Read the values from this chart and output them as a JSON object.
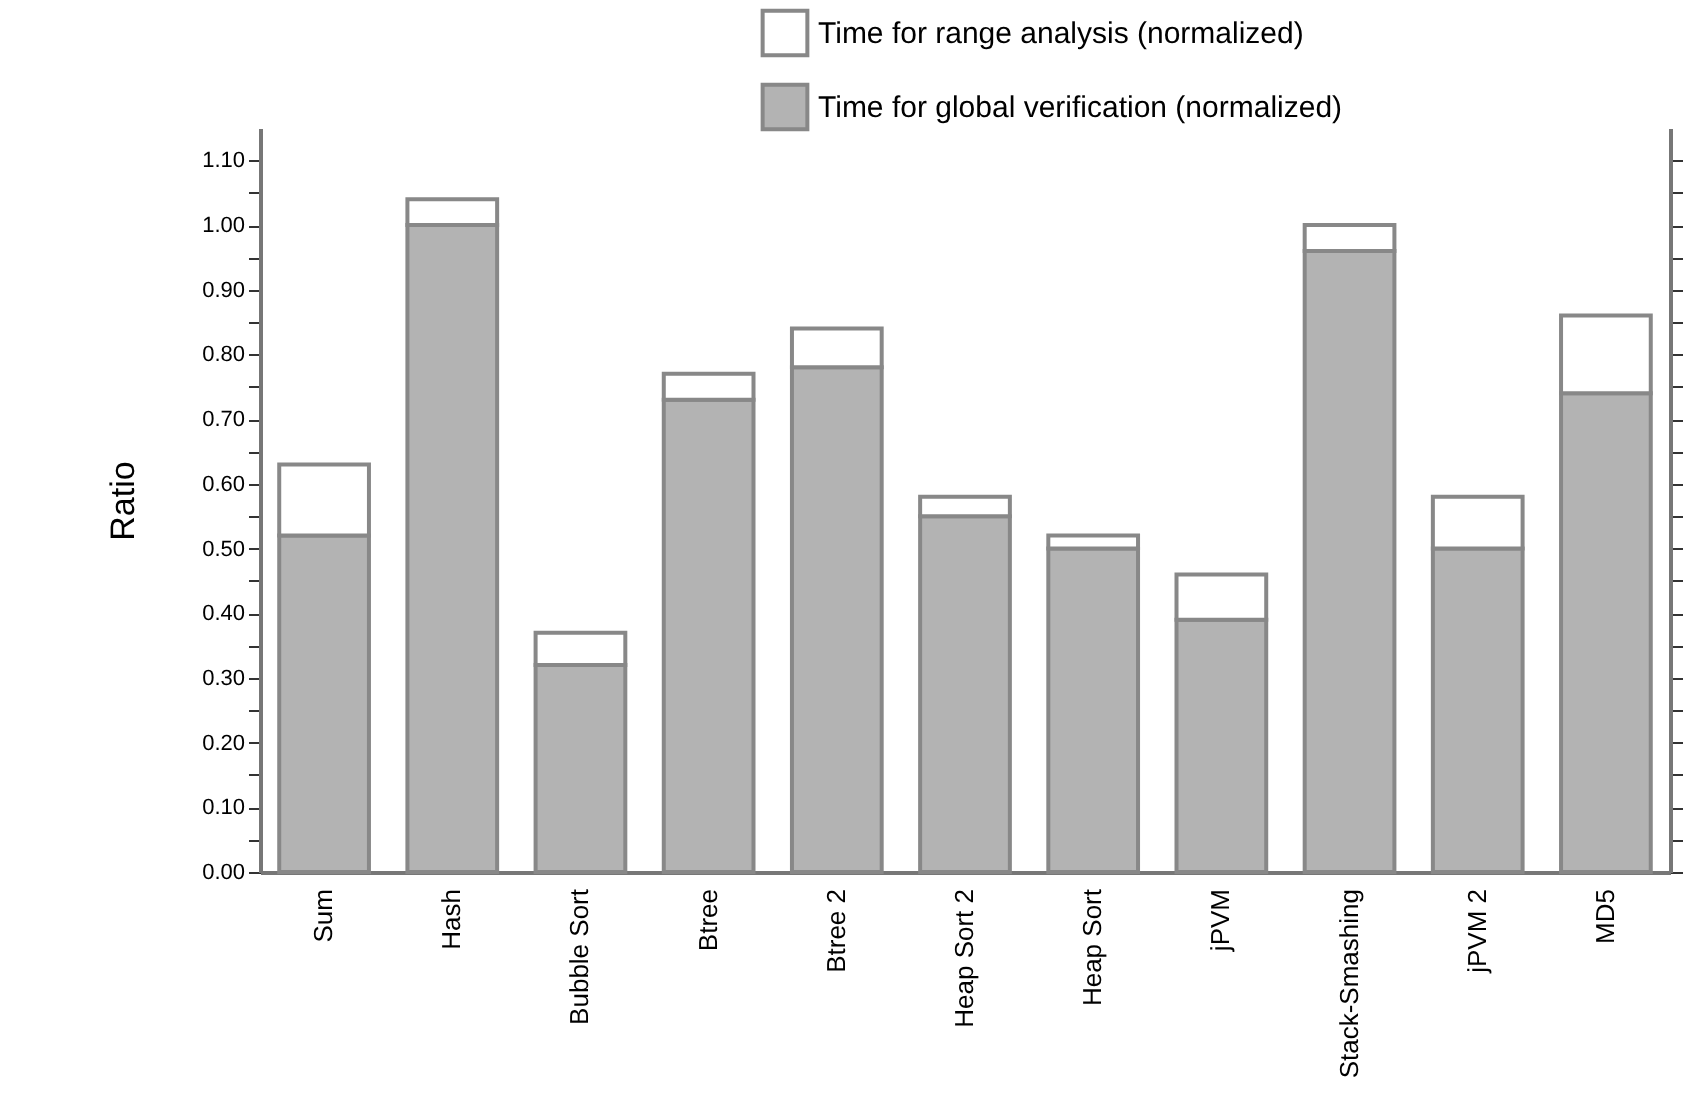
{
  "chart_data": {
    "type": "bar",
    "stacked": true,
    "ylabel": "Ratio",
    "categories": [
      "Sum",
      "Hash",
      "Bubble Sort",
      "Btree",
      "Btree 2",
      "Heap Sort 2",
      "Heap Sort",
      "jPVM",
      "Stack-Smashing",
      "jPVM 2",
      "MD5"
    ],
    "series": [
      {
        "name": "Time for global verification (normalized)",
        "color": "#b3b3b3",
        "values": [
          0.52,
          1.0,
          0.32,
          0.73,
          0.78,
          0.55,
          0.5,
          0.39,
          0.96,
          0.5,
          0.74
        ]
      },
      {
        "name": "Time for range analysis (normalized)",
        "color": "#ffffff",
        "values": [
          0.11,
          0.04,
          0.05,
          0.04,
          0.06,
          0.03,
          0.02,
          0.07,
          0.04,
          0.08,
          0.12
        ]
      }
    ],
    "ylim": [
      0,
      1.15
    ],
    "yticks": [
      {
        "value": 0,
        "label": "0.00"
      },
      {
        "value": 0.05,
        "label": null
      },
      {
        "value": 0.1,
        "label": "0.10"
      },
      {
        "value": 0.15,
        "label": null
      },
      {
        "value": 0.2,
        "label": "0.20"
      },
      {
        "value": 0.25,
        "label": null
      },
      {
        "value": 0.3,
        "label": "0.30"
      },
      {
        "value": 0.35,
        "label": null
      },
      {
        "value": 0.4,
        "label": "0.40"
      },
      {
        "value": 0.45,
        "label": null
      },
      {
        "value": 0.5,
        "label": "0.50"
      },
      {
        "value": 0.55,
        "label": null
      },
      {
        "value": 0.6,
        "label": "0.60"
      },
      {
        "value": 0.65,
        "label": null
      },
      {
        "value": 0.7,
        "label": "0.70"
      },
      {
        "value": 0.75,
        "label": null
      },
      {
        "value": 0.8,
        "label": "0.80"
      },
      {
        "value": 0.85,
        "label": null
      },
      {
        "value": 0.9,
        "label": "0.90"
      },
      {
        "value": 0.95,
        "label": null
      },
      {
        "value": 1.0,
        "label": "1.00"
      },
      {
        "value": 1.05,
        "label": null
      },
      {
        "value": 1.1,
        "label": "1.10"
      }
    ],
    "legend": "top right",
    "grid": false
  }
}
